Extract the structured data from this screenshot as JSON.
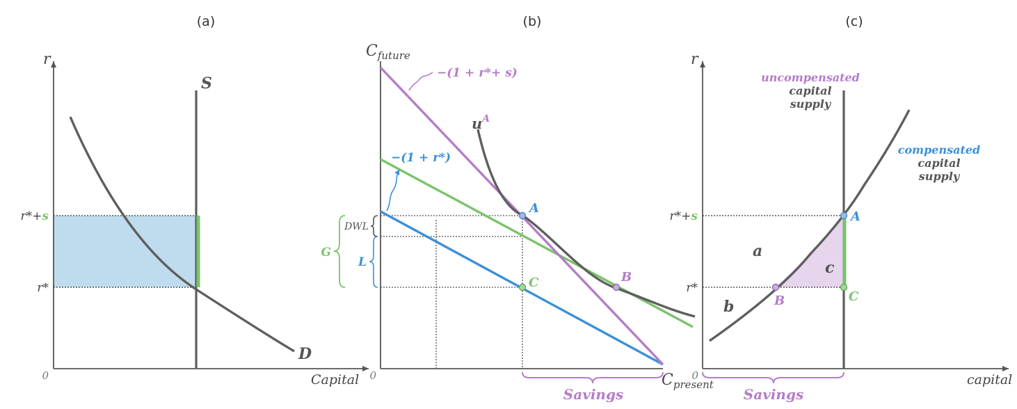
{
  "colors": {
    "axis": "#555555",
    "curve": "#5e5e5e",
    "purple": "#b57cc9",
    "blue": "#3b8fd8",
    "green": "#7ac46a",
    "light_blue_fill": "#a9d0ea",
    "light_purple_fill": "#e3cdea",
    "point_fill": "#a9b8d6"
  },
  "chart_data": [
    {
      "type": "line",
      "panel_label": "(a)",
      "xlabel": "Capital",
      "ylabel": "r",
      "origin_label": "0",
      "tick_labels": {
        "r_star": "r*",
        "r_star_s_prefix": "r*+",
        "r_star_s_suffix": "s"
      },
      "series": [
        {
          "name": "D",
          "kind": "demand curve"
        },
        {
          "name": "S",
          "kind": "vertical supply"
        }
      ],
      "annotations": [
        "shaded rectangle between r* and r*+s up to supply",
        "green bar on S between r* and r*+s"
      ]
    },
    {
      "type": "line",
      "panel_label": "(b)",
      "ylabel": "C",
      "ylabel_sub": "future",
      "xlabel": "C",
      "xlabel_sub": "present",
      "origin_label": "0",
      "line_labels": {
        "purple_slope": "−(1 + r*+ s)",
        "blue_slope": "−(1 + r*)",
        "indifference": "u",
        "indifference_sup": "A"
      },
      "points": {
        "A": "A",
        "B": "B",
        "C": "C"
      },
      "braces": {
        "dwl": "DWL",
        "g": "G",
        "l": "L"
      },
      "bottom_label": "Savings"
    },
    {
      "type": "line",
      "panel_label": "(c)",
      "xlabel": "capital",
      "ylabel": "r",
      "origin_label": "0",
      "tick_labels": {
        "r_star": "r*",
        "r_star_s_prefix": "r*+",
        "r_star_s_suffix": "s"
      },
      "uncompensated_label": [
        "uncompensated",
        "capital",
        "supply"
      ],
      "compensated_label": [
        "compensated",
        "capital",
        "supply"
      ],
      "regions": {
        "a": "a",
        "b": "b",
        "c": "c"
      },
      "points": {
        "A": "A",
        "B": "B",
        "C": "C"
      },
      "bottom_label": "Savings"
    }
  ]
}
